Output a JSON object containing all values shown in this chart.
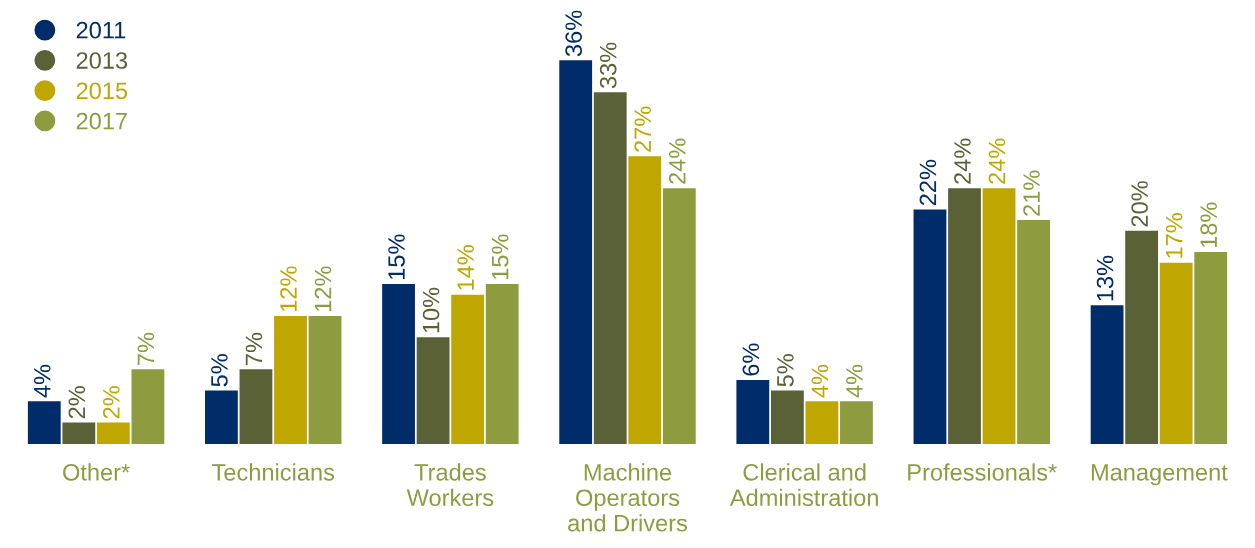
{
  "chart_data": {
    "type": "bar",
    "categories": [
      "Other*",
      "Technicians",
      "Trades\nWorkers",
      "Machine\nOperators\nand Drivers",
      "Clerical and\nAdministration",
      "Professionals*",
      "Management"
    ],
    "series": [
      {
        "name": "2011",
        "color": "#002d6a",
        "values": [
          4,
          5,
          15,
          36,
          6,
          22,
          13
        ],
        "value_labels": [
          "4%",
          "5%",
          "15%",
          "36%",
          "6%",
          "22%",
          "13%"
        ]
      },
      {
        "name": "2013",
        "color": "#5a6137",
        "values": [
          2,
          7,
          10,
          33,
          5,
          24,
          20
        ],
        "value_labels": [
          "2%",
          "7%",
          "10%",
          "33%",
          "5%",
          "24%",
          "20%"
        ]
      },
      {
        "name": "2015",
        "color": "#bfa600",
        "values": [
          2,
          12,
          14,
          27,
          4,
          24,
          17
        ],
        "value_labels": [
          "2%",
          "12%",
          "14%",
          "27%",
          "4%",
          "24%",
          "17%"
        ]
      },
      {
        "name": "2017",
        "color": "#8e9b3f",
        "values": [
          7,
          12,
          15,
          24,
          4,
          21,
          18
        ],
        "value_labels": [
          "7%",
          "12%",
          "15%",
          "24%",
          "4%",
          "21%",
          "18%"
        ]
      }
    ],
    "legend": "top left",
    "grid": false
  }
}
